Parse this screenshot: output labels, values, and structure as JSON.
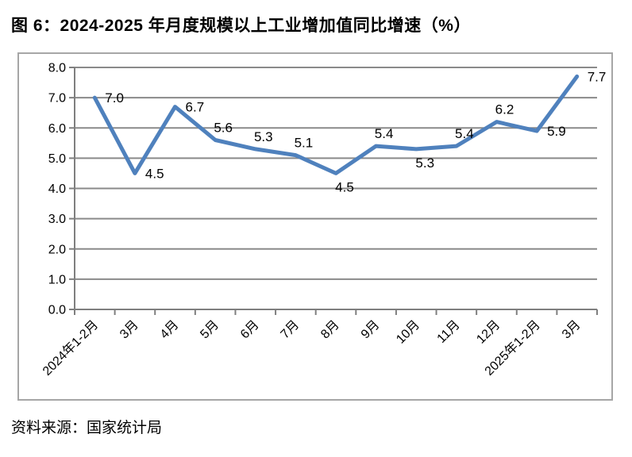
{
  "title": "图 6：2024-2025 年月度规模以上工业增加值同比增速（%）",
  "source": "资料来源：国家统计局",
  "chart_data": {
    "type": "line",
    "title": "图 6：2024-2025 年月度规模以上工业增加值同比增速（%）",
    "xlabel": "",
    "ylabel": "",
    "categories": [
      "2024年1-2月",
      "3月",
      "4月",
      "5月",
      "6月",
      "7月",
      "8月",
      "9月",
      "10月",
      "11月",
      "12月",
      "2025年1-2月",
      "3月"
    ],
    "values": [
      7.0,
      4.5,
      6.7,
      5.6,
      5.3,
      5.1,
      4.5,
      5.4,
      5.3,
      5.4,
      6.2,
      5.9,
      7.7
    ],
    "data_labels": [
      "7.0",
      "4.5",
      "6.7",
      "5.6",
      "5.3",
      "5.1",
      "4.5",
      "5.4",
      "5.3",
      "5.4",
      "6.2",
      "5.9",
      "7.7"
    ],
    "label_positions": [
      "right",
      "right",
      "right",
      "above",
      "above",
      "above",
      "below",
      "above",
      "below",
      "above",
      "above",
      "right",
      "right"
    ],
    "ylim": [
      0,
      8
    ],
    "ytick_step": 1,
    "ytick_labels": [
      "0.0",
      "1.0",
      "2.0",
      "3.0",
      "4.0",
      "5.0",
      "6.0",
      "7.0",
      "8.0"
    ],
    "grid": true,
    "legend_position": "none",
    "x_labels_rotated_deg": 45,
    "line_color": "#4F81BD",
    "grid_color": "#8A8A8A",
    "axis_color": "#7F7F7F",
    "frame_color": "#A6A6A6",
    "text_color": "#000000"
  }
}
